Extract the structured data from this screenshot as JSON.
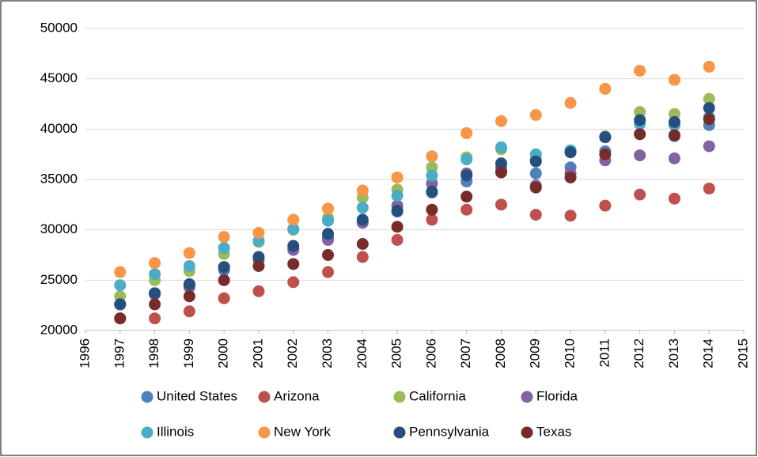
{
  "chart_data": {
    "type": "scatter",
    "x": [
      1997,
      1998,
      1999,
      2000,
      2001,
      2002,
      2003,
      2004,
      2005,
      2006,
      2007,
      2008,
      2009,
      2010,
      2011,
      2012,
      2013,
      2014
    ],
    "series": [
      {
        "name": "United States",
        "color": "#4f81bd",
        "values": [
          22600,
          23700,
          24500,
          26000,
          27100,
          28100,
          29200,
          30700,
          31800,
          33700,
          34800,
          36200,
          35600,
          36200,
          37800,
          39500,
          39300,
          40400
        ]
      },
      {
        "name": "Arizona",
        "color": "#c0504d",
        "values": [
          21200,
          21200,
          21900,
          23200,
          23900,
          24800,
          25800,
          27300,
          29000,
          31000,
          32000,
          32500,
          31500,
          31400,
          32400,
          33500,
          33100,
          34100
        ]
      },
      {
        "name": "California",
        "color": "#9bbb59",
        "values": [
          23400,
          25000,
          25900,
          27600,
          28800,
          30000,
          31200,
          33200,
          34000,
          36200,
          37200,
          38000,
          37000,
          37800,
          39300,
          41700,
          41500,
          43000
        ]
      },
      {
        "name": "Florida",
        "color": "#8064a2",
        "values": [
          22600,
          23600,
          24300,
          26300,
          27000,
          28000,
          29000,
          30700,
          32400,
          34600,
          35600,
          35900,
          34400,
          35600,
          36900,
          37400,
          37100,
          38300
        ]
      },
      {
        "name": "Illinois",
        "color": "#4bacc6",
        "values": [
          24500,
          25600,
          26400,
          28200,
          28900,
          30100,
          30900,
          32200,
          33400,
          35400,
          37000,
          38200,
          37500,
          37900,
          39200,
          40500,
          40400,
          41200
        ]
      },
      {
        "name": "New York",
        "color": "#f79646",
        "values": [
          25800,
          26700,
          27700,
          29300,
          29700,
          31000,
          32100,
          33900,
          35200,
          37300,
          39600,
          40800,
          41400,
          42600,
          44000,
          45800,
          44900,
          46200
        ]
      },
      {
        "name": "Pennsylvania",
        "color": "#254f7e",
        "values": [
          22600,
          23700,
          24600,
          26300,
          27300,
          28400,
          29600,
          31000,
          31900,
          33800,
          35400,
          36600,
          36800,
          37700,
          39200,
          40900,
          40700,
          42100
        ]
      },
      {
        "name": "Texas",
        "color": "#772c2a",
        "values": [
          21200,
          22600,
          23400,
          25000,
          26400,
          26600,
          27500,
          28600,
          30300,
          32000,
          33300,
          35700,
          34200,
          35200,
          37500,
          39500,
          39400,
          41000
        ]
      }
    ],
    "xlim": [
      1996,
      2015
    ],
    "xticks": [
      1996,
      1997,
      1998,
      1999,
      2000,
      2001,
      2002,
      2003,
      2004,
      2005,
      2006,
      2007,
      2008,
      2009,
      2010,
      2011,
      2012,
      2013,
      2014,
      2015
    ],
    "ylim": [
      20000,
      50000
    ],
    "yticks": [
      20000,
      25000,
      30000,
      35000,
      40000,
      45000,
      50000
    ],
    "grid": true,
    "legend": "bottom"
  }
}
